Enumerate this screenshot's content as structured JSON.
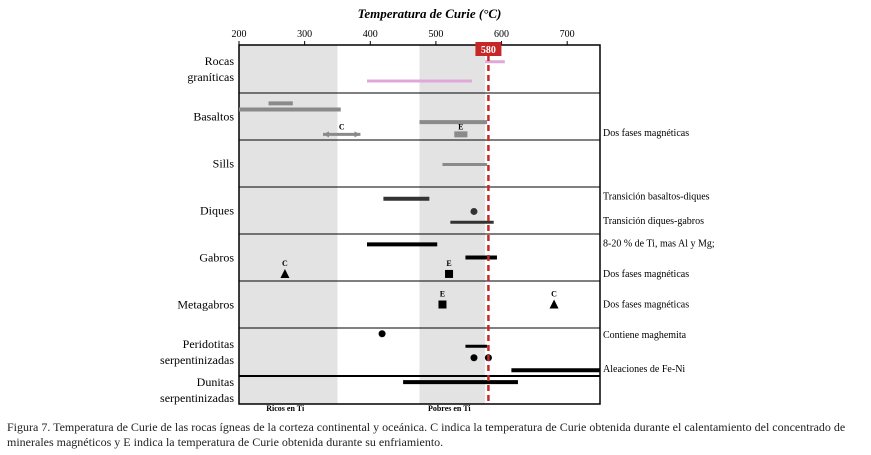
{
  "chart_data": {
    "type": "range-dot",
    "title": "Temperatura de Curie (°C)",
    "x_ticks": [
      200,
      300,
      400,
      500,
      600,
      700
    ],
    "xlim": [
      200,
      750
    ],
    "reference_line": {
      "value": 580,
      "label": "580",
      "color": "#c62828"
    },
    "shaded_regions": [
      {
        "from": 200,
        "to": 350,
        "label": "Ricos en Ti"
      },
      {
        "from": 475,
        "to": 575,
        "label": "Pobres en Ti"
      }
    ],
    "categories": [
      {
        "lines": [
          "Rocas",
          "graníticas"
        ]
      },
      {
        "lines": [
          "Basaltos"
        ]
      },
      {
        "lines": [
          "Sills"
        ]
      },
      {
        "lines": [
          "Diques"
        ]
      },
      {
        "lines": [
          "Gabros"
        ]
      },
      {
        "lines": [
          "Metagabros"
        ]
      },
      {
        "lines": [
          "Peridotitas",
          "serpentinizadas"
        ]
      },
      {
        "lines": [
          "Dunitas",
          "serpentinizadas"
        ]
      }
    ],
    "ranges": [
      {
        "row": 0,
        "pos": 0.75,
        "from": 395,
        "to": 555,
        "color": "#e0a8d8",
        "width": 3
      },
      {
        "row": 0,
        "pos": 0.35,
        "from": 575,
        "to": 605,
        "color": "#e0a8d8",
        "width": 3
      },
      {
        "row": 1,
        "pos": 0.22,
        "from": 245,
        "to": 282,
        "color": "#8a8a8a",
        "width": 4
      },
      {
        "row": 1,
        "pos": 0.35,
        "from": 200,
        "to": 355,
        "color": "#8a8a8a",
        "width": 4
      },
      {
        "row": 1,
        "pos": 0.62,
        "from": 475,
        "to": 578,
        "color": "#8a8a8a",
        "width": 4
      },
      {
        "row": 1,
        "pos": 0.88,
        "from": 328,
        "to": 385,
        "color": "#8a8a8a",
        "width": 3,
        "arrows": true,
        "label": "C"
      },
      {
        "row": 1,
        "pos": 0.88,
        "from": 528,
        "to": 548,
        "color": "#8a8a8a",
        "width": 6,
        "label": "E"
      },
      {
        "row": 2,
        "pos": 0.52,
        "from": 510,
        "to": 578,
        "color": "#8a8a8a",
        "width": 3
      },
      {
        "row": 3,
        "pos": 0.25,
        "from": 420,
        "to": 490,
        "color": "#333333",
        "width": 4
      },
      {
        "row": 3,
        "pos": 0.75,
        "from": 522,
        "to": 588,
        "color": "#333333",
        "width": 3
      },
      {
        "row": 4,
        "pos": 0.22,
        "from": 395,
        "to": 502,
        "color": "#000000",
        "width": 4
      },
      {
        "row": 4,
        "pos": 0.5,
        "from": 545,
        "to": 593,
        "color": "#000000",
        "width": 4
      },
      {
        "row": 6,
        "pos": 0.38,
        "from": 545,
        "to": 578,
        "color": "#000000",
        "width": 3
      },
      {
        "row": 6,
        "pos": 0.88,
        "from": 615,
        "to": 750,
        "color": "#000000",
        "width": 4
      },
      {
        "row": 7,
        "pos": 0.22,
        "from": 450,
        "to": 625,
        "color": "#000000",
        "width": 4
      }
    ],
    "points": [
      {
        "row": 3,
        "pos": 0.52,
        "x": 558,
        "shape": "circle",
        "color": "#333333"
      },
      {
        "row": 4,
        "pos": 0.85,
        "x": 270,
        "shape": "triangle",
        "color": "#000000",
        "label": "C"
      },
      {
        "row": 4,
        "pos": 0.85,
        "x": 520,
        "shape": "square",
        "color": "#000000",
        "label": "E"
      },
      {
        "row": 5,
        "pos": 0.5,
        "x": 510,
        "shape": "square",
        "color": "#000000",
        "label": "E"
      },
      {
        "row": 5,
        "pos": 0.5,
        "x": 680,
        "shape": "triangle",
        "color": "#000000",
        "label": "C"
      },
      {
        "row": 6,
        "pos": 0.12,
        "x": 418,
        "shape": "circle",
        "color": "#000000"
      },
      {
        "row": 6,
        "pos": 0.62,
        "x": 558,
        "shape": "circle",
        "color": "#000000"
      },
      {
        "row": 6,
        "pos": 0.62,
        "x": 580,
        "shape": "circle",
        "color": "#000000"
      }
    ],
    "annotations": [
      {
        "row": 1,
        "pos": 0.85,
        "text": "Dos fases magnéticas"
      },
      {
        "row": 3,
        "pos": 0.2,
        "text": "Transición basaltos-diques"
      },
      {
        "row": 3,
        "pos": 0.72,
        "text": "Transición diques-gabros"
      },
      {
        "row": 4,
        "pos": 0.2,
        "text": "8-20 % de Ti, mas Al y Mg;"
      },
      {
        "row": 4,
        "pos": 0.85,
        "text": "Dos fases magnéticas"
      },
      {
        "row": 5,
        "pos": 0.5,
        "text": "Dos fases magnéticas"
      },
      {
        "row": 6,
        "pos": 0.15,
        "text": "Contiene maghemita"
      },
      {
        "row": 6,
        "pos": 0.85,
        "text": "Aleaciones de Fe-Ni"
      }
    ]
  },
  "caption": "Figura 7. Temperatura de Curie de las rocas ígneas de la corteza continental y oceánica. C indica la temperatura de Curie obtenida durante el calentamiento del concentrado de minerales magnéticos y E indica la temperatura de Curie obtenida durante su enfriamiento."
}
